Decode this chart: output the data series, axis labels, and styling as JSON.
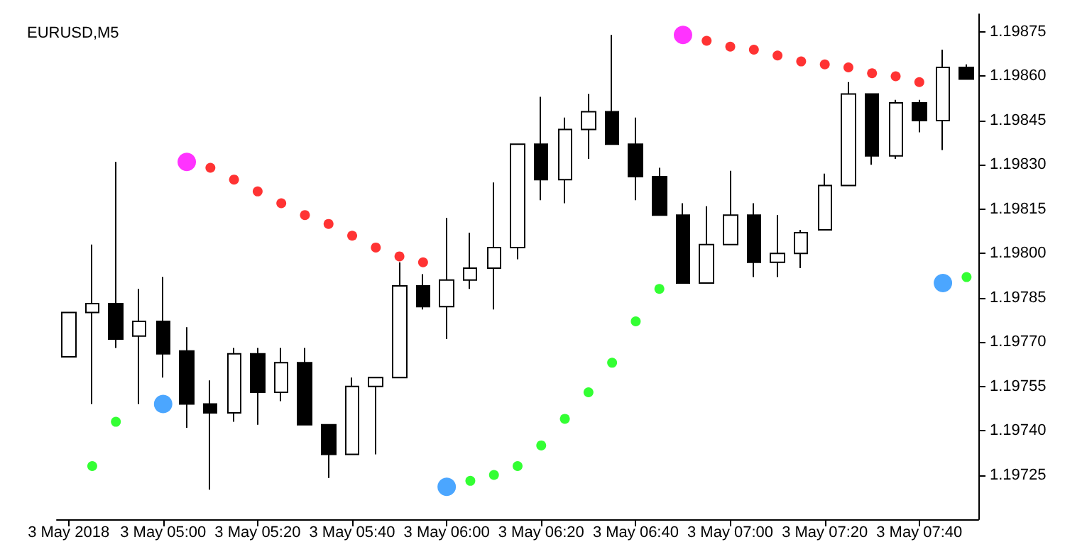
{
  "chart_data": {
    "type": "candlestick",
    "title": "EURUSD,M5",
    "categories": [
      "3 May 2018",
      null,
      null,
      null,
      "3 May 05:00",
      null,
      null,
      null,
      "3 May 05:20",
      null,
      null,
      null,
      "3 May 05:40",
      null,
      null,
      null,
      "3 May 06:00",
      null,
      null,
      null,
      "3 May 06:20",
      null,
      null,
      null,
      "3 May 06:40",
      null,
      null,
      null,
      "3 May 07:00",
      null,
      null,
      null,
      "3 May 07:20",
      null,
      null,
      null,
      "3 May 07:40",
      null,
      null
    ],
    "ohlc": [
      [
        1.19765,
        1.1978,
        1.19765,
        1.1978
      ],
      [
        1.1978,
        1.19803,
        1.19749,
        1.19783
      ],
      [
        1.19783,
        1.19831,
        1.19768,
        1.19771
      ],
      [
        1.19772,
        1.19788,
        1.19749,
        1.19777
      ],
      [
        1.19777,
        1.19792,
        1.19758,
        1.19766
      ],
      [
        1.19767,
        1.19775,
        1.19741,
        1.19749
      ],
      [
        1.19749,
        1.19757,
        1.1972,
        1.19746
      ],
      [
        1.19746,
        1.19768,
        1.19743,
        1.19766
      ],
      [
        1.19766,
        1.19768,
        1.19742,
        1.19753
      ],
      [
        1.19753,
        1.19768,
        1.1975,
        1.19763
      ],
      [
        1.19763,
        1.19768,
        1.19742,
        1.19742
      ],
      [
        1.19742,
        1.19742,
        1.19724,
        1.19732
      ],
      [
        1.19732,
        1.19758,
        1.19732,
        1.19755
      ],
      [
        1.19755,
        1.19758,
        1.19732,
        1.19758
      ],
      [
        1.19758,
        1.19797,
        1.19758,
        1.19789
      ],
      [
        1.19789,
        1.19793,
        1.19781,
        1.19782
      ],
      [
        1.19782,
        1.19812,
        1.19771,
        1.19791
      ],
      [
        1.19791,
        1.19807,
        1.19788,
        1.19795
      ],
      [
        1.19795,
        1.19824,
        1.19781,
        1.19802
      ],
      [
        1.19802,
        1.19837,
        1.19798,
        1.19837
      ],
      [
        1.19837,
        1.19853,
        1.19818,
        1.19825
      ],
      [
        1.19825,
        1.19846,
        1.19817,
        1.19842
      ],
      [
        1.19842,
        1.19854,
        1.19832,
        1.19848
      ],
      [
        1.19848,
        1.19874,
        1.19837,
        1.19837
      ],
      [
        1.19837,
        1.19846,
        1.19818,
        1.19826
      ],
      [
        1.19826,
        1.19829,
        1.19813,
        1.19813
      ],
      [
        1.19813,
        1.19817,
        1.1979,
        1.1979
      ],
      [
        1.1979,
        1.19816,
        1.1979,
        1.19803
      ],
      [
        1.19803,
        1.19828,
        1.19803,
        1.19813
      ],
      [
        1.19813,
        1.19817,
        1.19792,
        1.19797
      ],
      [
        1.19797,
        1.19813,
        1.19792,
        1.198
      ],
      [
        1.198,
        1.19808,
        1.19795,
        1.19807
      ],
      [
        1.19808,
        1.19827,
        1.19808,
        1.19823
      ],
      [
        1.19823,
        1.19858,
        1.19823,
        1.19854
      ],
      [
        1.19854,
        1.19854,
        1.1983,
        1.19833
      ],
      [
        1.19833,
        1.19852,
        1.19832,
        1.19851
      ],
      [
        1.19851,
        1.19852,
        1.19841,
        1.19845
      ],
      [
        1.19845,
        1.19869,
        1.19835,
        1.19863
      ],
      [
        1.19863,
        1.19864,
        1.19859,
        1.19859
      ]
    ],
    "series": [
      {
        "type": "scatter",
        "color": "#00ff00",
        "values": [
          null,
          1.19728,
          1.19743,
          null,
          null,
          null,
          null,
          null,
          null,
          null,
          null,
          null,
          null,
          null,
          null,
          null,
          null,
          1.19723,
          1.19725,
          1.19728,
          1.19735,
          1.19744,
          1.19753,
          1.19763,
          1.19777,
          1.19788,
          null,
          null,
          null,
          null,
          null,
          null,
          null,
          null,
          null,
          null,
          null,
          null,
          1.19792
        ]
      },
      {
        "type": "scatter",
        "color": "#ff0000",
        "values": [
          null,
          null,
          null,
          null,
          null,
          null,
          1.19829,
          1.19825,
          1.19821,
          1.19817,
          1.19813,
          1.1981,
          1.19806,
          1.19802,
          1.19799,
          1.19797,
          null,
          null,
          null,
          null,
          null,
          null,
          null,
          null,
          null,
          null,
          null,
          1.19872,
          1.1987,
          1.19869,
          1.19867,
          1.19865,
          1.19864,
          1.19863,
          1.19861,
          1.1986,
          1.19858,
          null,
          null
        ]
      },
      {
        "type": "scatter",
        "color": "#1e90ff",
        "values": [
          null,
          null,
          null,
          null,
          1.19749,
          null,
          null,
          null,
          null,
          null,
          null,
          null,
          null,
          null,
          null,
          null,
          1.19721,
          null,
          null,
          null,
          null,
          null,
          null,
          null,
          null,
          null,
          null,
          null,
          null,
          null,
          null,
          null,
          null,
          null,
          null,
          null,
          null,
          1.1979,
          null
        ]
      },
      {
        "type": "scatter",
        "color": "#ff00ff",
        "values": [
          null,
          null,
          null,
          null,
          null,
          1.19831,
          null,
          null,
          null,
          null,
          null,
          null,
          null,
          null,
          null,
          null,
          null,
          null,
          null,
          null,
          null,
          null,
          null,
          null,
          null,
          null,
          1.19874,
          null,
          null,
          null,
          null,
          null,
          null,
          null,
          null,
          null,
          null,
          null,
          null
        ]
      }
    ],
    "ylim": [
      1.1971,
      1.19881
    ],
    "yticks": [
      1.19725,
      {
        "value": 1.1974,
        "label": "1.19740"
      },
      1.19755,
      {
        "value": 1.1977,
        "label": "1.19770"
      },
      1.19785,
      {
        "value": 1.198,
        "label": "1.19800"
      },
      1.19815,
      {
        "value": 1.1983,
        "label": "1.19830"
      },
      1.19845,
      {
        "value": 1.1986,
        "label": "1.19860"
      },
      1.19875
    ],
    "marker": "circle",
    "grid": false
  }
}
